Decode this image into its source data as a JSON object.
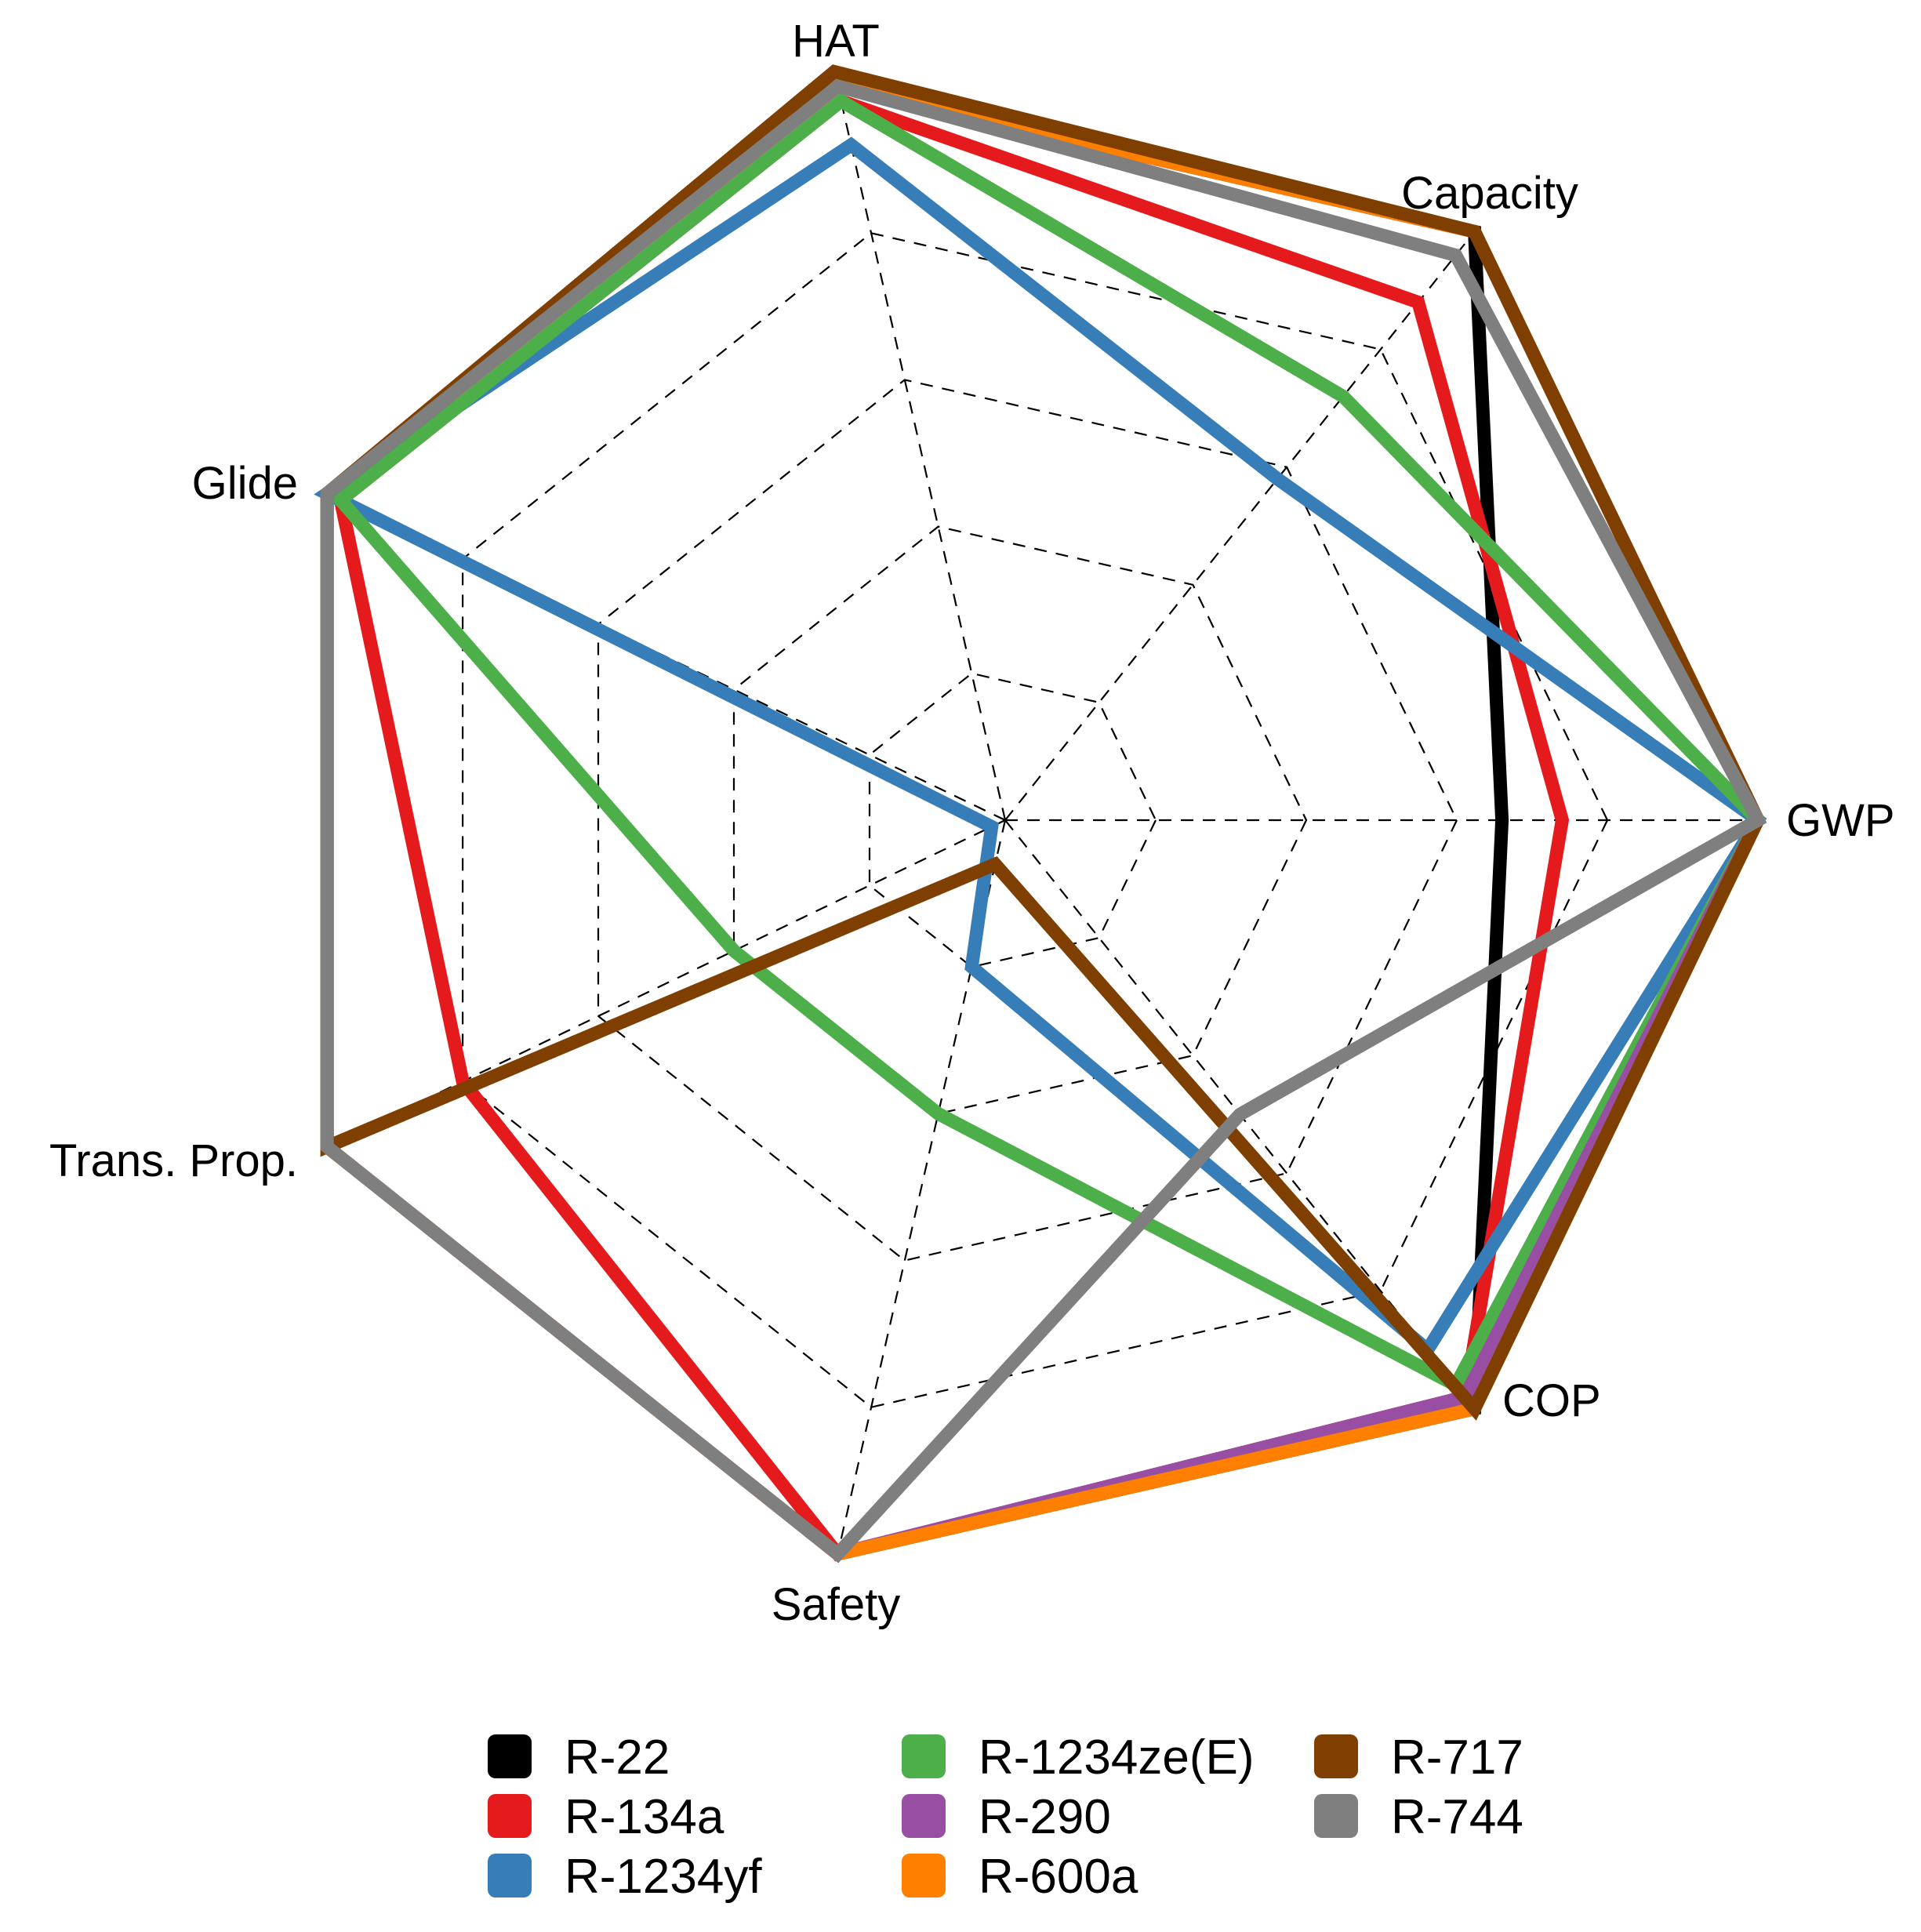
{
  "chart_data": {
    "type": "radar",
    "axes": [
      "GWP",
      "COP",
      "Safety",
      "Trans. Prop.",
      "Glide",
      "HAT",
      "Capacity"
    ],
    "rmax": 5,
    "grid_levels": [
      1,
      2,
      3,
      4,
      5
    ],
    "grid": true,
    "legend_position": "bottom",
    "series": [
      {
        "name": "R-22",
        "color": "#000000",
        "values": [
          3.3,
          5.0,
          5.0,
          5.0,
          5.0,
          5.0,
          5.0
        ]
      },
      {
        "name": "R-134a",
        "color": "#e41a1c",
        "values": [
          3.7,
          4.9,
          5.0,
          4.0,
          4.9,
          4.9,
          4.4
        ]
      },
      {
        "name": "R-1234yf",
        "color": "#377eb8",
        "values": [
          5.0,
          4.5,
          1.0,
          0.1,
          5.0,
          4.6,
          2.9
        ]
      },
      {
        "name": "R-1234ze(E)",
        "color": "#4daf4a",
        "values": [
          5.0,
          4.8,
          2.0,
          2.0,
          4.9,
          4.9,
          3.6
        ]
      },
      {
        "name": "R-290",
        "color": "#984ea3",
        "values": [
          5.0,
          4.9,
          5.0,
          5.0,
          5.0,
          5.0,
          5.0
        ]
      },
      {
        "name": "R-600a",
        "color": "#ff7f00",
        "values": [
          5.0,
          5.0,
          5.0,
          5.0,
          5.0,
          5.0,
          5.0
        ]
      },
      {
        "name": "R-717",
        "color": "#7f3f00",
        "values": [
          5.0,
          5.0,
          0.3,
          5.0,
          5.0,
          5.1,
          5.0
        ]
      },
      {
        "name": "R-744",
        "color": "#7f7f7f",
        "values": [
          5.0,
          2.5,
          5.0,
          5.0,
          5.0,
          5.0,
          4.8
        ]
      }
    ]
  }
}
